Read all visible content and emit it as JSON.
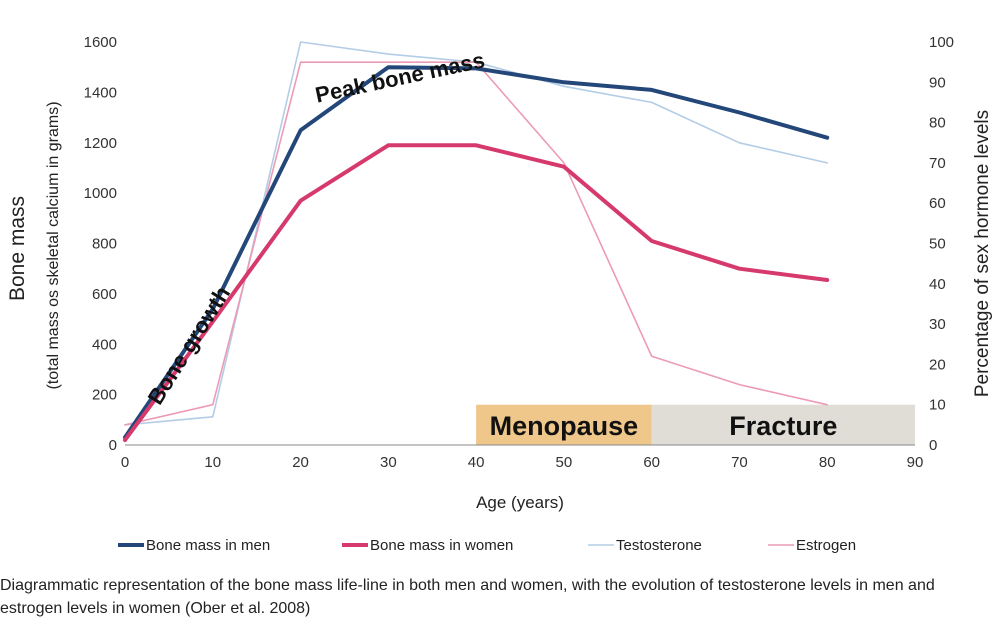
{
  "chart_data": {
    "type": "line",
    "xlabel": "Age (years)",
    "ylabel": "Bone mass",
    "ylabel_sub": "(total mass os skeletal calcium in grams)",
    "y2label": "Percentage of sex hormone levels",
    "xlim": [
      0,
      90
    ],
    "ylim": [
      0,
      1600
    ],
    "y2lim": [
      0,
      100
    ],
    "x_ticks": [
      0,
      10,
      20,
      30,
      40,
      50,
      60,
      70,
      80,
      90
    ],
    "y_ticks": [
      0,
      200,
      400,
      600,
      800,
      1000,
      1200,
      1400,
      1600
    ],
    "y2_ticks": [
      0,
      10,
      20,
      30,
      40,
      50,
      60,
      70,
      80,
      90,
      100
    ],
    "series": [
      {
        "name": "Bone mass in men",
        "axis": "left",
        "color": "#24477a",
        "width": 4,
        "x": [
          0,
          10,
          20,
          30,
          40,
          50,
          60,
          70,
          80
        ],
        "values": [
          30,
          540,
          1250,
          1500,
          1495,
          1440,
          1410,
          1320,
          1220
        ]
      },
      {
        "name": "Bone mass in women",
        "axis": "left",
        "color": "#d63a6c",
        "width": 4,
        "x": [
          0,
          10,
          20,
          30,
          40,
          50,
          60,
          70,
          80
        ],
        "values": [
          20,
          490,
          970,
          1190,
          1190,
          1105,
          810,
          700,
          655
        ]
      },
      {
        "name": "Testosterone",
        "axis": "right",
        "color": "#b3cde6",
        "width": 1.6,
        "x": [
          0,
          10,
          20,
          30,
          40,
          50,
          60,
          70,
          80
        ],
        "values": [
          5,
          7,
          100,
          97,
          95,
          89,
          85,
          75,
          70
        ]
      },
      {
        "name": "Estrogen",
        "axis": "right",
        "color": "#ec9bb5",
        "width": 1.6,
        "x": [
          0,
          10,
          20,
          30,
          40,
          50,
          60,
          70,
          80
        ],
        "values": [
          5,
          10,
          95,
          95,
          95,
          70,
          22,
          15,
          10
        ]
      }
    ],
    "bands": [
      {
        "label": "Menopause",
        "x_start": 40,
        "x_end": 60,
        "y2_top": 10,
        "color": "#f0c78a"
      },
      {
        "label": "Fracture",
        "x_start": 60,
        "x_end": 90,
        "y2_top": 10,
        "color": "#e0ddd7"
      }
    ],
    "annotations": [
      {
        "text": "Bone growth",
        "x": 8,
        "y": 380,
        "angle": -58
      },
      {
        "text": "Peak bone mass",
        "x": 31.5,
        "y": 1430,
        "angle": -12
      }
    ],
    "legend": "bottom"
  },
  "caption": "Diagrammatic representation of the bone mass life-line in both men and women, with the evolution of testosterone levels in men and estrogen levels in women (Ober et al. 2008)"
}
